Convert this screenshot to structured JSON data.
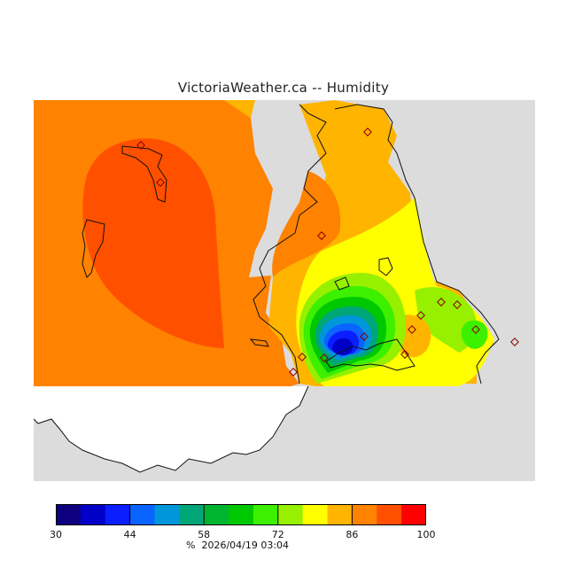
{
  "title": "VictoriaWeather.ca -- Humidity",
  "legend": {
    "colors": [
      "#0d007f",
      "#0000c8",
      "#0a1eff",
      "#0a64ff",
      "#0096dc",
      "#00a578",
      "#00b432",
      "#00c800",
      "#3cf000",
      "#96f000",
      "#ffff00",
      "#ffb400",
      "#ff8200",
      "#ff5000",
      "#ff0000"
    ],
    "ticks": [
      "30",
      "44",
      "58",
      "72",
      "86",
      "100"
    ],
    "unit": "%",
    "timestamp": "2026/04/19 03:04"
  },
  "map": {
    "no_data_color": "#dcdcdc",
    "land_outside_color": "#ffffff"
  }
}
